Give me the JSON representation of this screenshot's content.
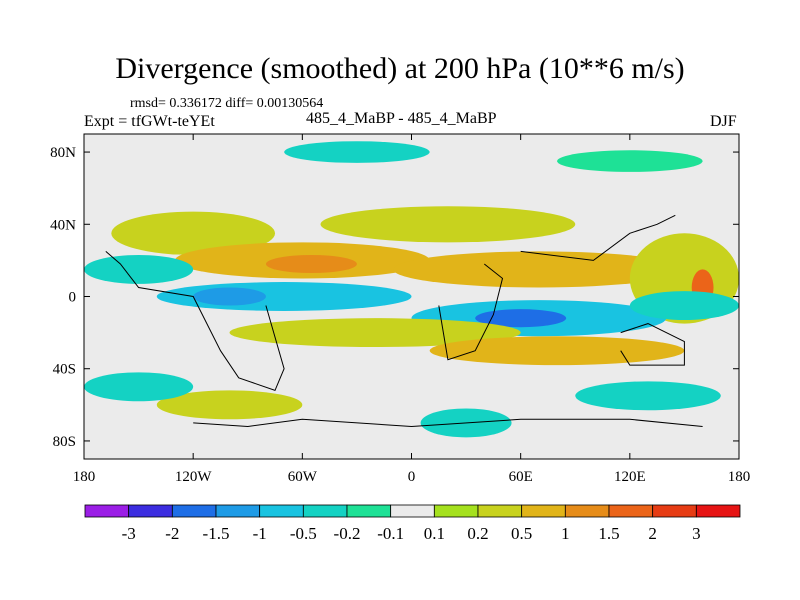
{
  "title": "Divergence (smoothed) at 200 hPa (10**6 m/s)",
  "stats": "rmsd= 0.336172 diff= 0.00130564",
  "experiment": "Expt = tfGWt-teYEt",
  "case": "485_4_MaBP - 485_4_MaBP",
  "season": "DJF",
  "chart_data": {
    "type": "heatmap",
    "xlabel": "",
    "ylabel": "",
    "xlim": [
      -180,
      180
    ],
    "ylim": [
      -90,
      90
    ],
    "x_ticks": [
      {
        "value": -180,
        "label": "180"
      },
      {
        "value": -120,
        "label": "120W"
      },
      {
        "value": -60,
        "label": "60W"
      },
      {
        "value": 0,
        "label": "0"
      },
      {
        "value": 60,
        "label": "60E"
      },
      {
        "value": 120,
        "label": "120E"
      },
      {
        "value": 180,
        "label": "180"
      }
    ],
    "y_ticks": [
      {
        "value": 80,
        "label": "80N"
      },
      {
        "value": 40,
        "label": "40N"
      },
      {
        "value": 0,
        "label": "0"
      },
      {
        "value": -40,
        "label": "40S"
      },
      {
        "value": -80,
        "label": "80S"
      }
    ],
    "colorbar": {
      "levels": [
        "-3",
        "-2",
        "-1.5",
        "-1",
        "-0.5",
        "-0.2",
        "-0.1",
        "0.1",
        "0.2",
        "0.5",
        "1",
        "1.5",
        "2",
        "3"
      ],
      "colors": [
        "#9b1ee6",
        "#3c2de0",
        "#1e6ee6",
        "#1e9be6",
        "#19c3e1",
        "#14d2c3",
        "#1ee196",
        "#ebebeb",
        "#a5e11e",
        "#c8d21e",
        "#e1b419",
        "#e68c19",
        "#eb6419",
        "#e63c14",
        "#e61414"
      ]
    },
    "regions": [
      {
        "lon": -120,
        "lat": 35,
        "w": 45,
        "h": 12,
        "level": 9
      },
      {
        "lon": -60,
        "lat": 20,
        "w": 70,
        "h": 10,
        "level": 10
      },
      {
        "lon": -55,
        "lat": 18,
        "w": 25,
        "h": 5,
        "level": 11
      },
      {
        "lon": 70,
        "lat": 15,
        "w": 80,
        "h": 10,
        "level": 10
      },
      {
        "lon": 20,
        "lat": 40,
        "w": 70,
        "h": 10,
        "level": 9
      },
      {
        "lon": 150,
        "lat": 10,
        "w": 30,
        "h": 25,
        "level": 9
      },
      {
        "lon": 160,
        "lat": 5,
        "w": 6,
        "h": 10,
        "level": 12
      },
      {
        "lon": -70,
        "lat": 0,
        "w": 70,
        "h": 8,
        "level": 4
      },
      {
        "lon": -100,
        "lat": 0,
        "w": 20,
        "h": 5,
        "level": 3
      },
      {
        "lon": 70,
        "lat": -12,
        "w": 70,
        "h": 10,
        "level": 4
      },
      {
        "lon": 60,
        "lat": -12,
        "w": 25,
        "h": 5,
        "level": 2
      },
      {
        "lon": 150,
        "lat": -5,
        "w": 30,
        "h": 8,
        "level": 5
      },
      {
        "lon": -150,
        "lat": 15,
        "w": 30,
        "h": 8,
        "level": 5
      },
      {
        "lon": -20,
        "lat": -20,
        "w": 80,
        "h": 8,
        "level": 9
      },
      {
        "lon": 80,
        "lat": -30,
        "w": 70,
        "h": 8,
        "level": 10
      },
      {
        "lon": -30,
        "lat": 80,
        "w": 40,
        "h": 6,
        "level": 5
      },
      {
        "lon": 120,
        "lat": 75,
        "w": 40,
        "h": 6,
        "level": 6
      },
      {
        "lon": -100,
        "lat": -60,
        "w": 40,
        "h": 8,
        "level": 9
      },
      {
        "lon": 30,
        "lat": -70,
        "w": 25,
        "h": 8,
        "level": 5
      },
      {
        "lon": 130,
        "lat": -55,
        "w": 40,
        "h": 8,
        "level": 5
      },
      {
        "lon": -150,
        "lat": -50,
        "w": 30,
        "h": 8,
        "level": 5
      }
    ],
    "coastlines": [
      [
        [
          -168,
          25
        ],
        [
          -160,
          18
        ],
        [
          -150,
          5
        ],
        [
          -120,
          0
        ],
        [
          -105,
          -30
        ],
        [
          -95,
          -45
        ],
        [
          -75,
          -52
        ],
        [
          -70,
          -40
        ],
        [
          -80,
          -5
        ]
      ],
      [
        [
          15,
          -5
        ],
        [
          20,
          -35
        ],
        [
          35,
          -30
        ],
        [
          45,
          -10
        ],
        [
          50,
          10
        ],
        [
          40,
          18
        ]
      ],
      [
        [
          60,
          25
        ],
        [
          100,
          20
        ],
        [
          120,
          35
        ],
        [
          135,
          40
        ],
        [
          145,
          45
        ]
      ],
      [
        [
          115,
          -20
        ],
        [
          130,
          -15
        ],
        [
          150,
          -25
        ],
        [
          150,
          -38
        ],
        [
          120,
          -38
        ],
        [
          115,
          -30
        ]
      ],
      [
        [
          -120,
          -70
        ],
        [
          -90,
          -72
        ],
        [
          -60,
          -68
        ],
        [
          0,
          -72
        ],
        [
          60,
          -68
        ],
        [
          120,
          -68
        ],
        [
          160,
          -72
        ]
      ]
    ]
  }
}
